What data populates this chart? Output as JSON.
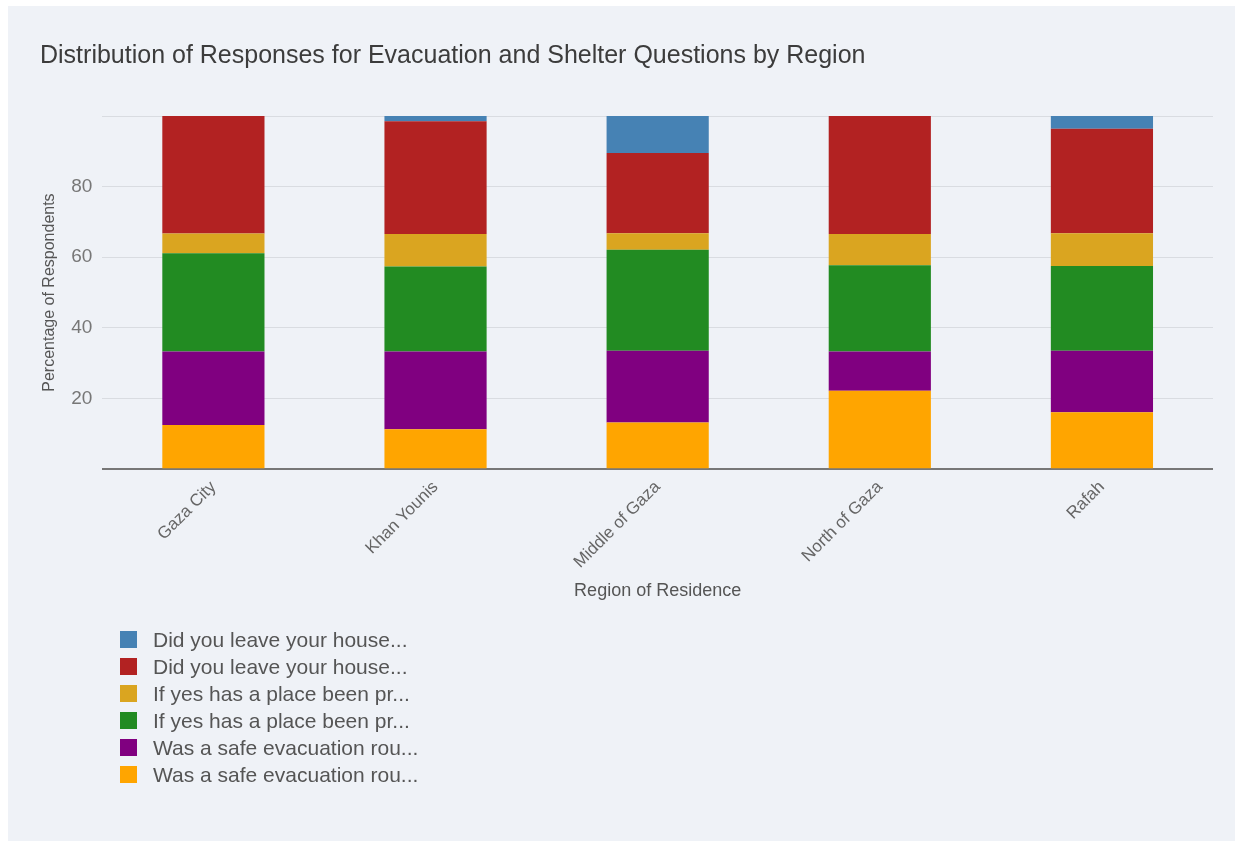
{
  "chart_data": {
    "type": "bar",
    "title": "Distribution of Responses for Evacuation and Shelter Questions by Region",
    "xlabel": "Region of Residence",
    "ylabel": "Percentage of Respondents",
    "categories": [
      "Gaza City",
      "Khan Younis",
      "Middle of Gaza",
      "North of Gaza",
      "Rafah"
    ],
    "stacked": true,
    "ylim": [
      0,
      100
    ],
    "yticks": [
      {
        "value": 0,
        "label": null
      },
      20,
      40,
      60,
      80,
      {
        "value": 100,
        "label": null
      }
    ],
    "grid": "y",
    "legend": "bottom left",
    "series": [
      {
        "name": "Was a safe evacuation rou...",
        "color": "#ffa500",
        "values": [
          12.5,
          11.3,
          13.2,
          22.2,
          16.1
        ]
      },
      {
        "name": "Was a safe evacuation rou...",
        "color": "#800080",
        "values": [
          20.8,
          22.0,
          20.3,
          11.1,
          17.4
        ]
      },
      {
        "name": "If yes has a place been pr...",
        "color": "#228b22",
        "values": [
          27.8,
          24.1,
          28.6,
          24.4,
          24.0
        ]
      },
      {
        "name": "If yes has a place been pr...",
        "color": "#daa520",
        "values": [
          5.6,
          9.2,
          4.7,
          8.9,
          9.3
        ]
      },
      {
        "name": "Did you leave your house...",
        "color": "#b22222",
        "values": [
          33.3,
          31.9,
          22.7,
          33.4,
          29.6
        ]
      },
      {
        "name": "Did you leave your house...",
        "color": "#4682b4",
        "values": [
          0,
          1.5,
          10.5,
          0,
          3.6
        ]
      }
    ]
  }
}
